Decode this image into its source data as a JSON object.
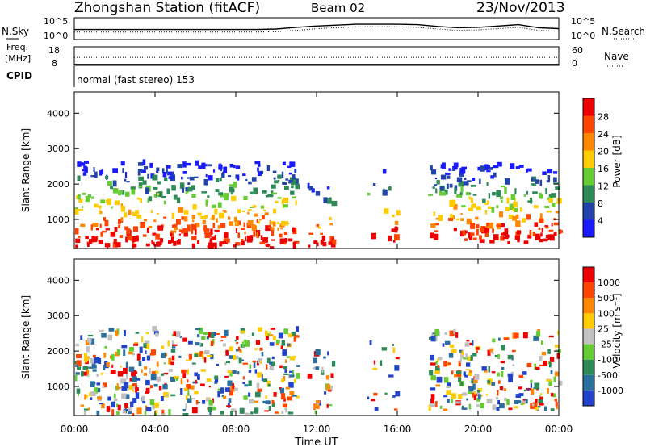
{
  "header": {
    "title": "Zhongshan Station (fitACF)",
    "beam": "Beam 02",
    "date": "23/Nov/2013"
  },
  "noise_panel": {
    "left_label": "N.Sky",
    "right_label": "N.Search",
    "left_ticks": [
      "10^5",
      "10^0"
    ],
    "right_ticks": [
      "10^5",
      "10^0"
    ]
  },
  "freq_panel": {
    "left_label_line1": "Freq.",
    "left_label_line2": "[MHz]",
    "right_label": "Nave",
    "left_ticks": [
      "18",
      "8"
    ],
    "right_ticks": [
      "60",
      "0"
    ]
  },
  "cpid_panel": {
    "label": "CPID",
    "text": "normal (fast stereo) 153"
  },
  "colors": {
    "power_scale": [
      "#1a1aff",
      "#2244aa",
      "#2e8b57",
      "#66cc33",
      "#ffcc00",
      "#ff8800",
      "#ff4400",
      "#ee0000"
    ],
    "velocity_scale": [
      "#2244cc",
      "#2a6fa0",
      "#2e8b57",
      "#66cc33",
      "#c0c0c0",
      "#ffcc00",
      "#ff8800",
      "#ff4400",
      "#ee0000"
    ]
  },
  "chart_data": [
    {
      "type": "line",
      "name": "noise",
      "x_hours": [
        0,
        1,
        2,
        3,
        4,
        5,
        6,
        7,
        8,
        9,
        10,
        11,
        12,
        13,
        14,
        15,
        16,
        17,
        18,
        19,
        20,
        21,
        22,
        23,
        24
      ],
      "series": [
        {
          "values": [
            2.3,
            2.3,
            2.3,
            2.3,
            2.3,
            2.3,
            2.3,
            2.3,
            2.3,
            2.3,
            2.4,
            2.8,
            3.1,
            3.3,
            3.5,
            3.5,
            3.5,
            3.4,
            3.0,
            2.7,
            2.8,
            3.1,
            3.4,
            2.7,
            2.5
          ]
        },
        {
          "values": [
            1.7,
            1.7,
            1.7,
            1.7,
            1.7,
            1.7,
            1.7,
            1.7,
            1.7,
            1.7,
            1.8,
            2.1,
            2.5,
            2.7,
            2.9,
            2.9,
            2.9,
            2.8,
            2.4,
            2.1,
            2.2,
            2.5,
            2.8,
            2.1,
            1.9
          ]
        }
      ],
      "ylim": [
        0,
        5
      ]
    },
    {
      "type": "line",
      "name": "frequency",
      "x_hours": [
        0,
        24
      ],
      "series": [
        {
          "values": [
            8.6,
            8.6
          ]
        },
        {
          "values": [
            12.3,
            12.3
          ]
        }
      ],
      "ylim": [
        8,
        18
      ]
    },
    {
      "type": "heatmap",
      "ylabel": "Slant Range [km]",
      "y_ticks": [
        "1000",
        "2000",
        "3000",
        "4000"
      ],
      "ylim": [
        180,
        4600
      ],
      "x_ticks": [
        "00:00",
        "04:00",
        "08:00",
        "12:00",
        "16:00",
        "20:00",
        "00:00"
      ],
      "xlim_hours": [
        0,
        24
      ],
      "colorbar_label": "Power [dB]",
      "colorbar_ticks": [
        "4",
        "8",
        "12",
        "16",
        "20",
        "24",
        "28"
      ],
      "clim": [
        0,
        30
      ]
    },
    {
      "type": "heatmap",
      "ylabel": "Slant Range [km]",
      "y_ticks": [
        "1000",
        "2000",
        "3000",
        "4000"
      ],
      "ylim": [
        180,
        4600
      ],
      "x_ticks": [
        "00:00",
        "04:00",
        "08:00",
        "12:00",
        "16:00",
        "20:00",
        "00:00"
      ],
      "xlabel": "Time UT",
      "xlim_hours": [
        0,
        24
      ],
      "colorbar_label": "Velocity [m s⁻¹]",
      "colorbar_ticks": [
        "1000",
        "500",
        "100",
        "25",
        "-25",
        "-100",
        "-500",
        "-1000"
      ]
    }
  ]
}
